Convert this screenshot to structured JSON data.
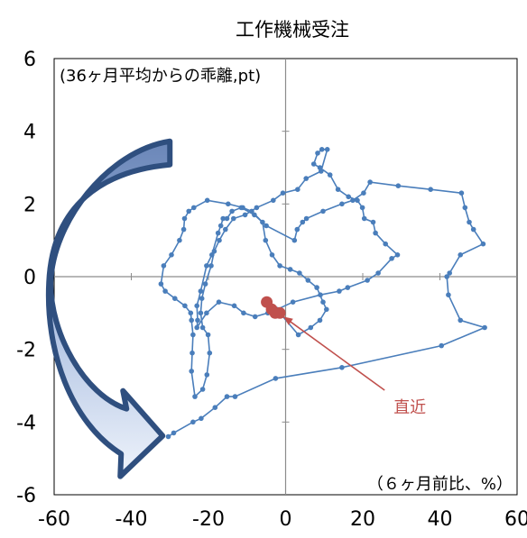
{
  "chart_data": {
    "type": "scatter",
    "title": "工作機械受注",
    "xlabel": "（６ヶ月前比、%）",
    "ylabel": "(36ヶ月平均からの乖離,pt)",
    "xlim": [
      -60,
      60
    ],
    "ylim": [
      -6,
      6
    ],
    "x_ticks": [
      -60,
      -40,
      -20,
      0,
      20,
      40,
      60
    ],
    "y_ticks": [
      -6,
      -4,
      -2,
      0,
      2,
      4,
      6
    ],
    "x_tick_labels": [
      "-60",
      "-40",
      "-20",
      "0",
      "20",
      "40",
      "60"
    ],
    "y_tick_labels": [
      "-6",
      "-4",
      "-2",
      "0",
      "2",
      "4",
      "6"
    ],
    "grid": false,
    "series": [
      {
        "color": "#4a7ebb",
        "connected": true,
        "points": [
          [
            -30.4,
            -4.4
          ],
          [
            -29.0,
            -4.3
          ],
          [
            -24.0,
            -4.0
          ],
          [
            -21.9,
            -3.9
          ],
          [
            -18.3,
            -3.6
          ],
          [
            -15.2,
            -3.3
          ],
          [
            -13.1,
            -3.3
          ],
          [
            -2.6,
            -2.8
          ],
          [
            14.6,
            -2.5
          ],
          [
            40.4,
            -1.9
          ],
          [
            51.6,
            -1.4
          ],
          [
            45.3,
            -1.2
          ],
          [
            42.2,
            -0.5
          ],
          [
            41.8,
            0.0
          ],
          [
            42.5,
            0.1
          ],
          [
            45.3,
            0.6
          ],
          [
            51.2,
            0.9
          ],
          [
            48.7,
            1.3
          ],
          [
            47.6,
            1.5
          ],
          [
            46.5,
            1.9
          ],
          [
            45.6,
            2.3
          ],
          [
            37.6,
            2.4
          ],
          [
            29.2,
            2.5
          ],
          [
            21.9,
            2.6
          ],
          [
            20.2,
            2.3
          ],
          [
            17.4,
            2.1
          ],
          [
            14.6,
            2.0
          ],
          [
            9.7,
            1.8
          ],
          [
            5.4,
            1.6
          ],
          [
            4.4,
            1.5
          ],
          [
            3.0,
            1.3
          ],
          [
            2.3,
            1.0
          ],
          [
            -5.0,
            1.4
          ],
          [
            -8.1,
            1.7
          ],
          [
            -11.5,
            1.9
          ],
          [
            -13.9,
            1.8
          ],
          [
            -15.2,
            1.6
          ],
          [
            -16.2,
            1.6
          ],
          [
            -16.8,
            1.4
          ],
          [
            -17.5,
            1.2
          ],
          [
            -19.1,
            0.6
          ],
          [
            -20.5,
            0.3
          ],
          [
            -22.0,
            -0.4
          ],
          [
            -23.0,
            -0.8
          ],
          [
            -22.8,
            -1.2
          ],
          [
            -23.0,
            -1.4
          ],
          [
            -20.5,
            -1.0
          ],
          [
            -17.3,
            -0.7
          ],
          [
            -13.3,
            -0.8
          ],
          [
            -10.9,
            -1.0
          ],
          [
            -7.9,
            -1.1
          ],
          [
            -4.6,
            -1.0
          ],
          [
            -2.2,
            -0.9
          ],
          [
            1.9,
            -0.7
          ],
          [
            9.0,
            -0.5
          ],
          [
            13.9,
            -0.4
          ],
          [
            16.1,
            -0.3
          ],
          [
            21.2,
            -0.1
          ],
          [
            24.0,
            0.1
          ],
          [
            27.5,
            0.5
          ],
          [
            29.0,
            0.6
          ],
          [
            25.9,
            0.9
          ],
          [
            23.3,
            1.2
          ],
          [
            22.7,
            1.5
          ],
          [
            20.4,
            1.6
          ],
          [
            19.9,
            1.9
          ],
          [
            18.6,
            2.1
          ],
          [
            16.3,
            2.2
          ],
          [
            13.6,
            2.4
          ],
          [
            11.5,
            2.8
          ],
          [
            8.9,
            3.0
          ],
          [
            7.3,
            3.1
          ],
          [
            8.3,
            3.4
          ],
          [
            9.4,
            3.5
          ],
          [
            10.8,
            3.5
          ],
          [
            9.2,
            2.9
          ],
          [
            5.3,
            2.7
          ],
          [
            3.1,
            2.4
          ],
          [
            -0.7,
            2.3
          ],
          [
            -3.2,
            2.1
          ],
          [
            -7.5,
            1.9
          ],
          [
            -10.5,
            1.7
          ],
          [
            -13.5,
            1.6
          ],
          [
            -15.6,
            1.3
          ],
          [
            -17.2,
            1.0
          ],
          [
            -18.5,
            0.7
          ],
          [
            -19.3,
            0.3
          ],
          [
            -20.8,
            -0.2
          ],
          [
            -21.7,
            -0.6
          ],
          [
            -22.0,
            -1.0
          ],
          [
            -21.5,
            -1.4
          ],
          [
            -20.1,
            -1.6
          ],
          [
            -19.7,
            -2.1
          ],
          [
            -20.4,
            -2.7
          ],
          [
            -21.5,
            -3.1
          ],
          [
            -23.5,
            -3.3
          ],
          [
            -24.4,
            -2.6
          ],
          [
            -24.2,
            -2.1
          ],
          [
            -24.0,
            -1.6
          ],
          [
            -24.4,
            -1.2
          ],
          [
            -24.6,
            -1.0
          ],
          [
            -26.1,
            -0.8
          ],
          [
            -28.7,
            -0.6
          ],
          [
            -31.2,
            -0.4
          ],
          [
            -32.3,
            -0.2
          ],
          [
            -31.6,
            0.3
          ],
          [
            -29.6,
            0.6
          ],
          [
            -27.5,
            1.0
          ],
          [
            -26.4,
            1.3
          ],
          [
            -26.2,
            1.6
          ],
          [
            -25.1,
            1.8
          ],
          [
            -23.8,
            1.9
          ],
          [
            -20.3,
            2.1
          ],
          [
            -14.9,
            2.0
          ],
          [
            -11.1,
            1.9
          ],
          [
            -8.8,
            1.8
          ],
          [
            -6.0,
            1.5
          ],
          [
            -5.2,
            1.0
          ],
          [
            -3.5,
            0.6
          ],
          [
            -1.5,
            0.3
          ],
          [
            1.2,
            0.2
          ],
          [
            3.6,
            0.1
          ],
          [
            5.8,
            -0.1
          ],
          [
            8.1,
            -0.3
          ],
          [
            9.7,
            -0.7
          ],
          [
            10.6,
            -0.9
          ],
          [
            8.9,
            -1.2
          ],
          [
            6.5,
            -1.4
          ],
          [
            3.3,
            -1.6
          ],
          [
            -1.5,
            -1.0
          ]
        ]
      }
    ],
    "highlight_points": [
      [
        -4.9,
        -0.7
      ],
      [
        -3.6,
        -0.9
      ],
      [
        -2.7,
        -1.0
      ],
      [
        -1.5,
        -1.0
      ]
    ],
    "highlight_color": "#c0504d",
    "annotation": {
      "text": "直近",
      "target": [
        -1.5,
        -1.0
      ],
      "label_at": [
        28,
        -3.0
      ],
      "color": "#c0504d"
    },
    "arrow": {
      "shape": "curved",
      "direction": "downward",
      "fill": "#dbe5f6",
      "edge": "#2f4f7f",
      "from": [
        -30,
        3.7
      ],
      "to": [
        -30,
        -5.0
      ]
    }
  }
}
